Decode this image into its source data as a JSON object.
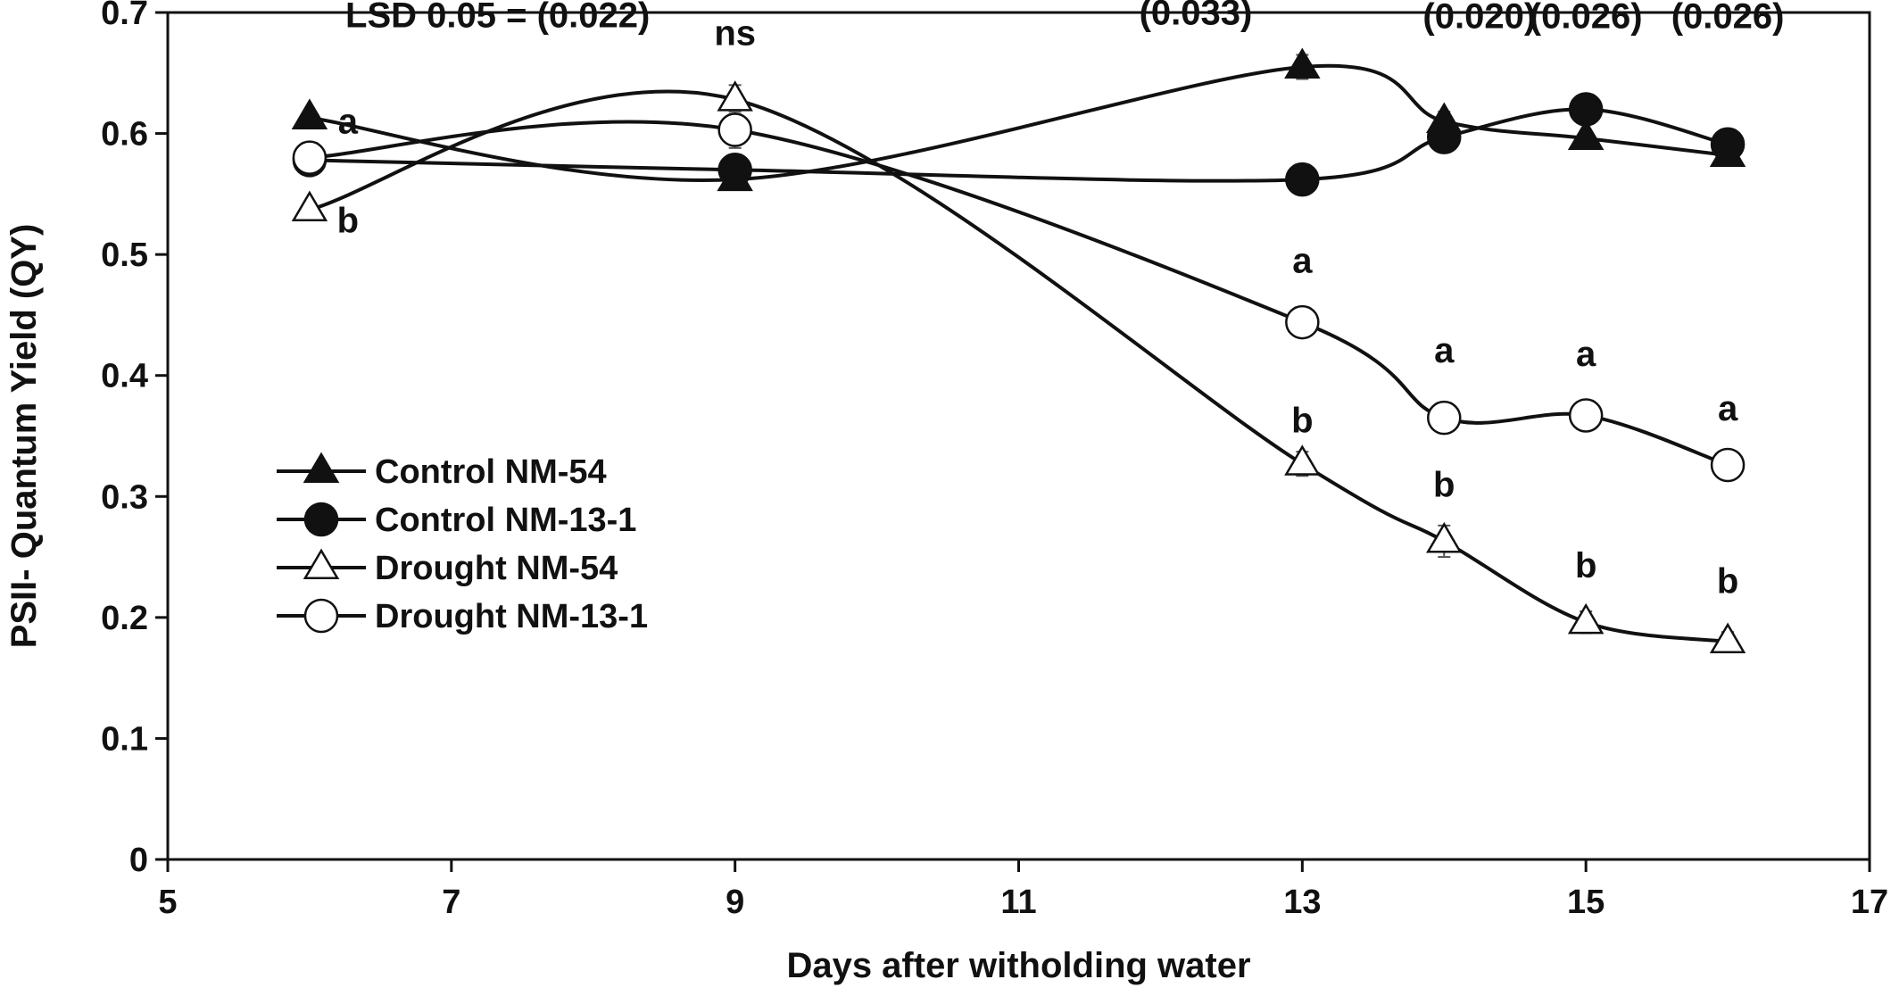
{
  "chart_data": {
    "type": "line",
    "title": "",
    "xlabel": "Days after witholding water",
    "ylabel": "PSII- Quantum Yield (QY)",
    "xlim": [
      5,
      17
    ],
    "ylim": [
      0,
      0.7
    ],
    "x_ticks": [
      5,
      7,
      9,
      11,
      13,
      15,
      17
    ],
    "y_ticks": [
      0,
      0.1,
      0.2,
      0.3,
      0.4,
      0.5,
      0.6,
      0.7
    ],
    "x_tick_labels": [
      "5",
      "7",
      "9",
      "11",
      "13",
      "15",
      "17"
    ],
    "y_tick_labels": [
      "0",
      "0.1",
      "0.2",
      "0.3",
      "0.4",
      "0.5",
      "0.6",
      "0.7"
    ],
    "grid": false,
    "legend_position": "center-left",
    "x": [
      6,
      9,
      13,
      14,
      15,
      16
    ],
    "series": [
      {
        "name": "Control NM-54",
        "marker": "triangle-filled",
        "values": [
          0.613,
          0.562,
          0.655,
          0.61,
          0.596,
          0.582
        ],
        "errors": [
          0.004,
          0.004,
          0.01,
          0.008,
          0.006,
          0.005
        ]
      },
      {
        "name": "Control NM-13-1",
        "marker": "circle-filled",
        "values": [
          0.578,
          0.57,
          0.562,
          0.597,
          0.62,
          0.591
        ],
        "errors": [
          0.004,
          0.005,
          0.005,
          0.006,
          0.006,
          0.005
        ]
      },
      {
        "name": "Drought NM-54",
        "marker": "triangle-open",
        "values": [
          0.537,
          0.628,
          0.327,
          0.263,
          0.196,
          0.18
        ],
        "errors": [
          0.006,
          0.012,
          0.01,
          0.013,
          0.009,
          0.008
        ]
      },
      {
        "name": "Drought NM-13-1",
        "marker": "circle-open",
        "values": [
          0.58,
          0.603,
          0.444,
          0.365,
          0.367,
          0.326
        ],
        "errors": [
          0.004,
          0.015,
          0.009,
          0.009,
          0.01,
          0.009
        ]
      }
    ],
    "annotations": [
      {
        "text": "LSD 0.05 = (0.022)",
        "x": 8.4,
        "y": 0.688,
        "anchor": "end"
      },
      {
        "text": "ns",
        "x": 9,
        "y": 0.673,
        "anchor": "middle"
      },
      {
        "text": "(0.033)",
        "x": 11.85,
        "y": 0.69,
        "anchor": "start"
      },
      {
        "text": "(0.020)",
        "x": 13.85,
        "y": 0.687,
        "anchor": "start"
      },
      {
        "text": "(0.026)",
        "x": 15,
        "y": 0.687,
        "anchor": "middle"
      },
      {
        "text": "(0.026)",
        "x": 16,
        "y": 0.687,
        "anchor": "middle"
      },
      {
        "text": "a",
        "x": 6.27,
        "y": 0.6,
        "anchor": "middle"
      },
      {
        "text": "b",
        "x": 6.27,
        "y": 0.518,
        "anchor": "middle"
      },
      {
        "text": "a",
        "x": 13,
        "y": 0.485,
        "anchor": "middle"
      },
      {
        "text": "b",
        "x": 13,
        "y": 0.353,
        "anchor": "middle"
      },
      {
        "text": "a",
        "x": 14,
        "y": 0.411,
        "anchor": "middle"
      },
      {
        "text": "b",
        "x": 14,
        "y": 0.3,
        "anchor": "middle"
      },
      {
        "text": "a",
        "x": 15,
        "y": 0.408,
        "anchor": "middle"
      },
      {
        "text": "b",
        "x": 15,
        "y": 0.233,
        "anchor": "middle"
      },
      {
        "text": "a",
        "x": 16,
        "y": 0.363,
        "anchor": "middle"
      },
      {
        "text": "b",
        "x": 16,
        "y": 0.22,
        "anchor": "middle"
      }
    ]
  }
}
